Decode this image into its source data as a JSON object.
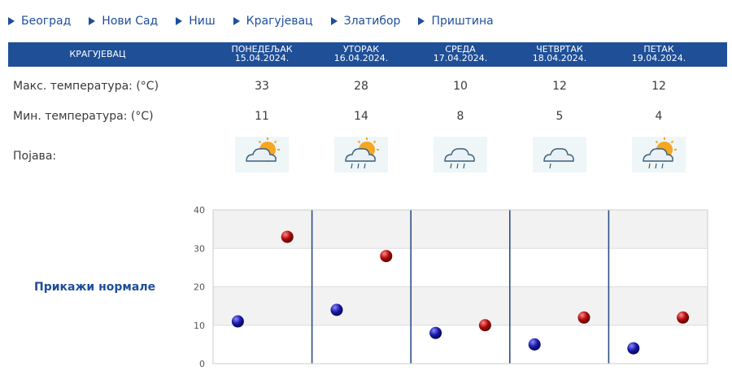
{
  "nav": {
    "items": [
      {
        "label": "Београд"
      },
      {
        "label": "Нови Сад"
      },
      {
        "label": "Ниш"
      },
      {
        "label": "Крагујевац"
      },
      {
        "label": "Златибор"
      },
      {
        "label": "Приштина"
      }
    ]
  },
  "table": {
    "city": "КРАГУЈЕВАЦ",
    "days": [
      {
        "name": "ПОНЕДЕЉАК",
        "date": "15.04.2024.",
        "max": "33",
        "min": "11",
        "icon": "sun-cloud-icon"
      },
      {
        "name": "УТОРАК",
        "date": "16.04.2024.",
        "max": "28",
        "min": "14",
        "icon": "sun-cloud-rain-icon"
      },
      {
        "name": "СРЕДА",
        "date": "17.04.2024.",
        "max": "10",
        "min": "8",
        "icon": "cloud-rain-icon"
      },
      {
        "name": "ЧЕТВРТАК",
        "date": "18.04.2024.",
        "max": "12",
        "min": "5",
        "icon": "cloud-drizzle-icon"
      },
      {
        "name": "ПЕТАК",
        "date": "19.04.2024.",
        "max": "12",
        "min": "4",
        "icon": "sun-cloud-rain-icon"
      }
    ],
    "max_label": "Макс. температура: (°C)",
    "min_label": "Мин. температура: (°C)",
    "phenomenon_label": "Појава:"
  },
  "show_normals": "Прикажи нормале",
  "colors": {
    "header": "#1f4f97",
    "min_marker": "#1a1aa8",
    "max_marker": "#b30a0a",
    "nav": "#1e4e9a"
  },
  "chart_data": {
    "type": "scatter",
    "ylim": [
      0,
      40
    ],
    "yticks": [
      0,
      10,
      20,
      30,
      40
    ],
    "categories": [
      "15.04.2024.",
      "16.04.2024.",
      "17.04.2024.",
      "18.04.2024.",
      "19.04.2024."
    ],
    "series": [
      {
        "values": [
          11,
          14,
          8,
          5,
          4
        ]
      },
      {
        "values": [
          33,
          28,
          10,
          12,
          12
        ]
      }
    ],
    "grid": true
  }
}
